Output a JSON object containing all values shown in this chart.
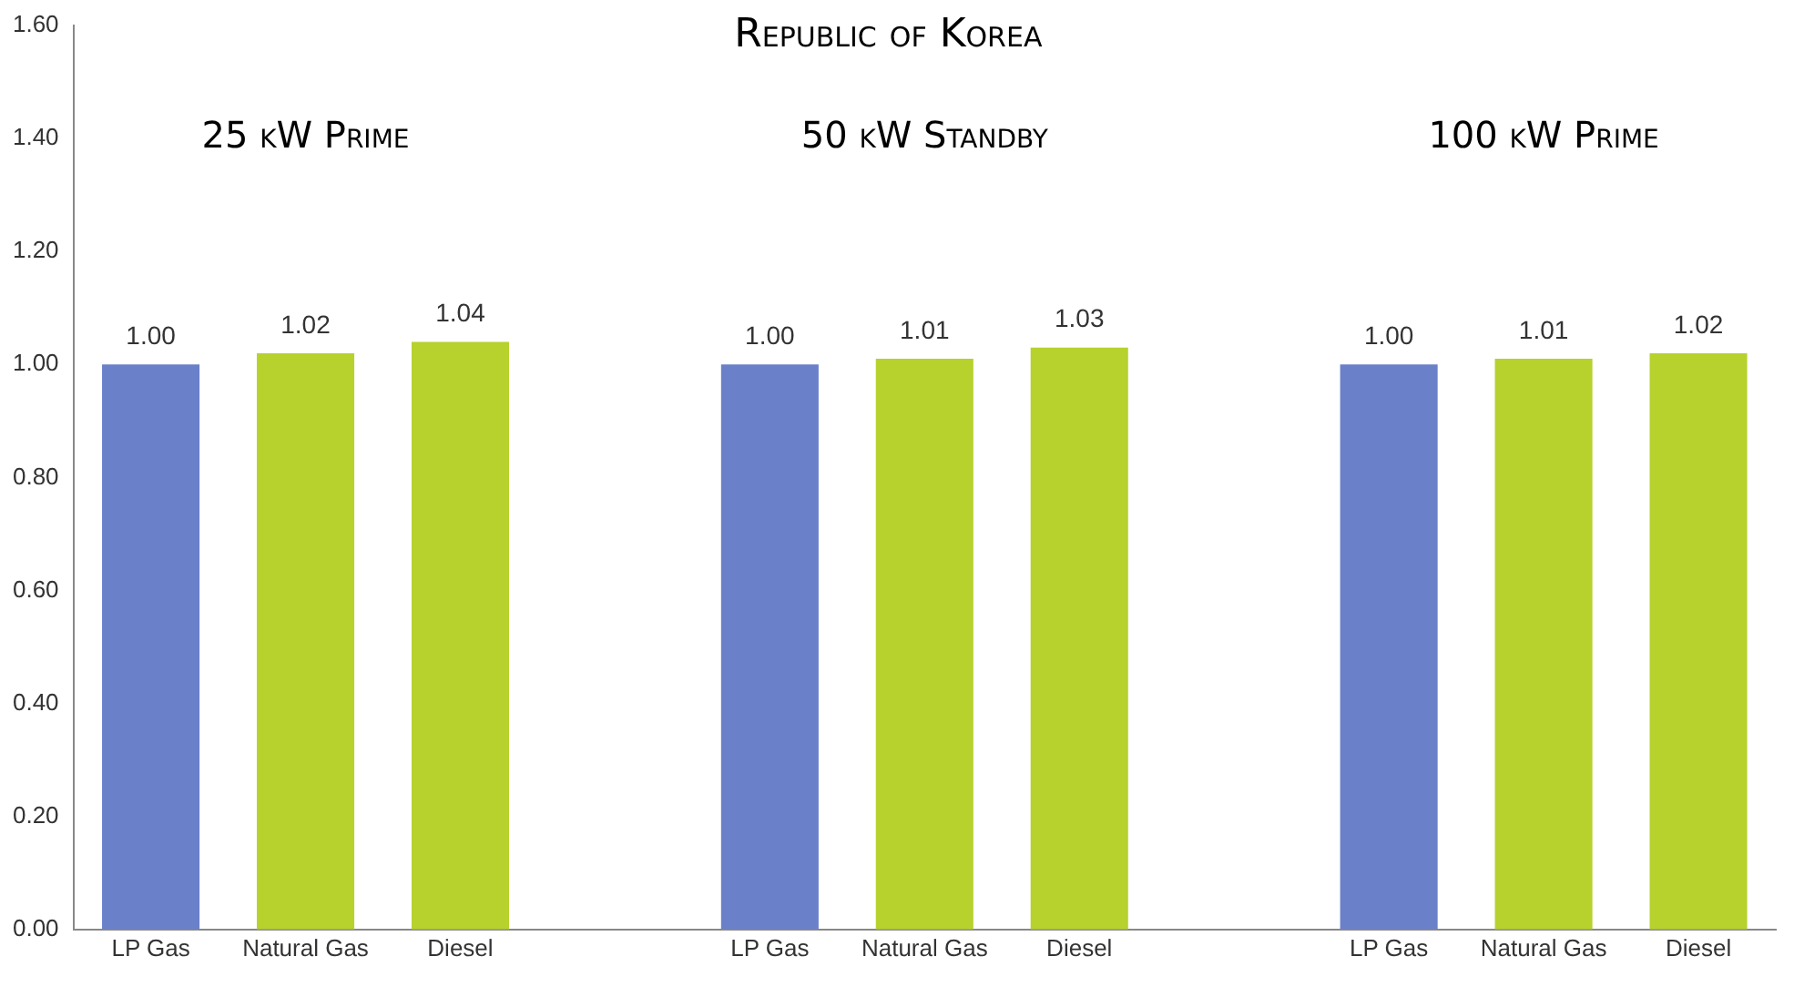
{
  "chart_data": {
    "type": "bar",
    "title": "Republic of Korea",
    "annotations": [
      "25 kW Prime",
      "50 kW Standby",
      "100 kW Prime"
    ],
    "categories": [
      "LP Gas",
      "Natural Gas",
      "Diesel",
      null,
      "LP Gas",
      "Natural Gas",
      "Diesel",
      null,
      "LP Gas",
      "Natural Gas",
      "Diesel"
    ],
    "values": [
      1.0,
      1.02,
      1.04,
      null,
      1.0,
      1.01,
      1.03,
      null,
      1.0,
      1.01,
      1.02
    ],
    "colors": [
      "#6a80c9",
      "#b7d12d",
      "#b7d12d",
      "#ffffff",
      "#6a80c9",
      "#b7d12d",
      "#b7d12d",
      "#ffffff",
      "#6a80c9",
      "#b7d12d",
      "#b7d12d"
    ],
    "ylim": [
      0,
      1.6
    ],
    "yticks": [
      {
        "value": 0,
        "label": "0.00"
      },
      {
        "value": 0.2,
        "label": "0.20"
      },
      {
        "value": 0.4,
        "label": "0.40"
      },
      {
        "value": 0.6,
        "label": "0.60"
      },
      {
        "value": 0.8,
        "label": "0.80"
      },
      {
        "value": 1.0,
        "label": "1.00"
      },
      {
        "value": 1.2,
        "label": "1.20"
      },
      {
        "value": 1.4,
        "label": "1.40"
      },
      {
        "value": 1.6,
        "label": "1.60"
      }
    ],
    "value_labels": [
      "1.00",
      "1.02",
      "1.04",
      null,
      "1.00",
      "1.01",
      "1.03",
      null,
      "1.00",
      "1.01",
      "1.02"
    ],
    "grid": false,
    "legend": false
  }
}
